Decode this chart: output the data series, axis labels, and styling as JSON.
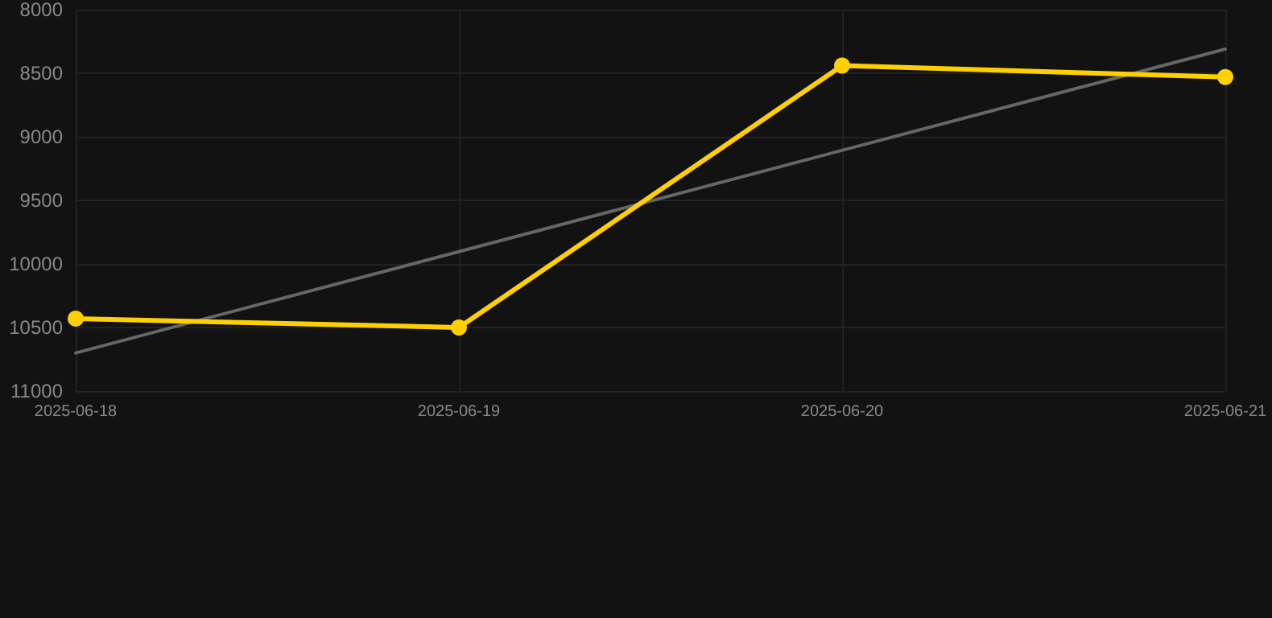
{
  "chart_data": {
    "type": "line",
    "x": [
      "2025-06-18",
      "2025-06-19",
      "2025-06-20",
      "2025-06-21"
    ],
    "xlim": [
      "2025-06-18",
      "2025-06-21"
    ],
    "xticks": [
      "2025-06-18",
      "2025-06-19",
      "2025-06-20",
      "2025-06-21"
    ],
    "ylim": [
      11000,
      8000
    ],
    "yticks": [
      8000,
      8500,
      9000,
      9500,
      10000,
      10500,
      11000
    ],
    "series": [
      {
        "color": "#ffd000",
        "values": [
          10430,
          10500,
          8440,
          8530
        ],
        "marker": "circle"
      },
      {
        "type": "line",
        "color": "#666666",
        "x": [
          "2025-06-18",
          "2025-06-21"
        ],
        "values": [
          10700,
          8310
        ],
        "marker": "none"
      }
    ],
    "grid": true,
    "line_style": "solid"
  }
}
